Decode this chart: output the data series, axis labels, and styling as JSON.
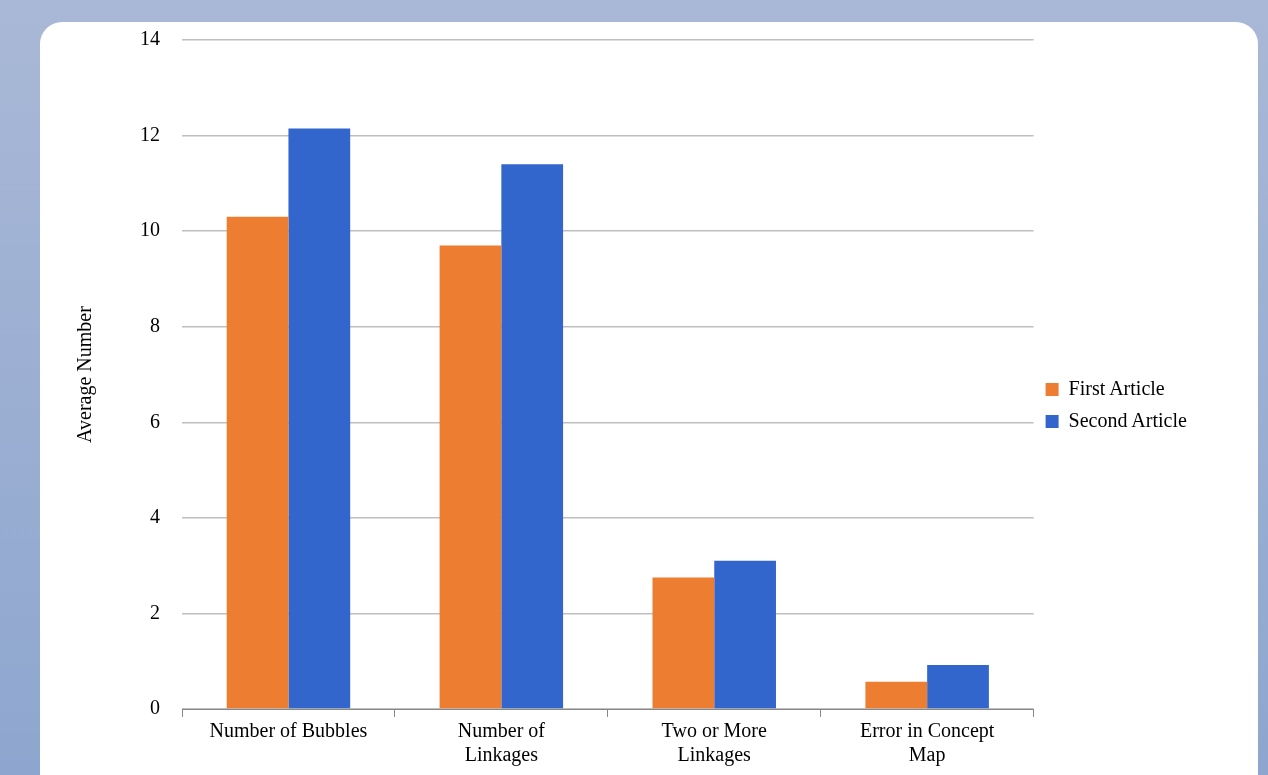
{
  "chart_data": {
    "type": "bar",
    "ylabel": "Average Number",
    "categories": [
      "Number of Bubbles",
      "Number of Linkages",
      "Two or More Linkages",
      "Error in Concept Map"
    ],
    "series": [
      {
        "name": "First Article",
        "color": "#ed7d31",
        "values": [
          10.3,
          9.7,
          2.75,
          0.57
        ]
      },
      {
        "name": "Second Article",
        "color": "#3366cc",
        "values": [
          12.15,
          11.4,
          3.1,
          0.92
        ]
      }
    ],
    "ylim": [
      0,
      14
    ],
    "yticks": [
      0,
      2,
      4,
      6,
      8,
      10,
      12,
      14
    ],
    "grid": "y",
    "legend": "right"
  }
}
